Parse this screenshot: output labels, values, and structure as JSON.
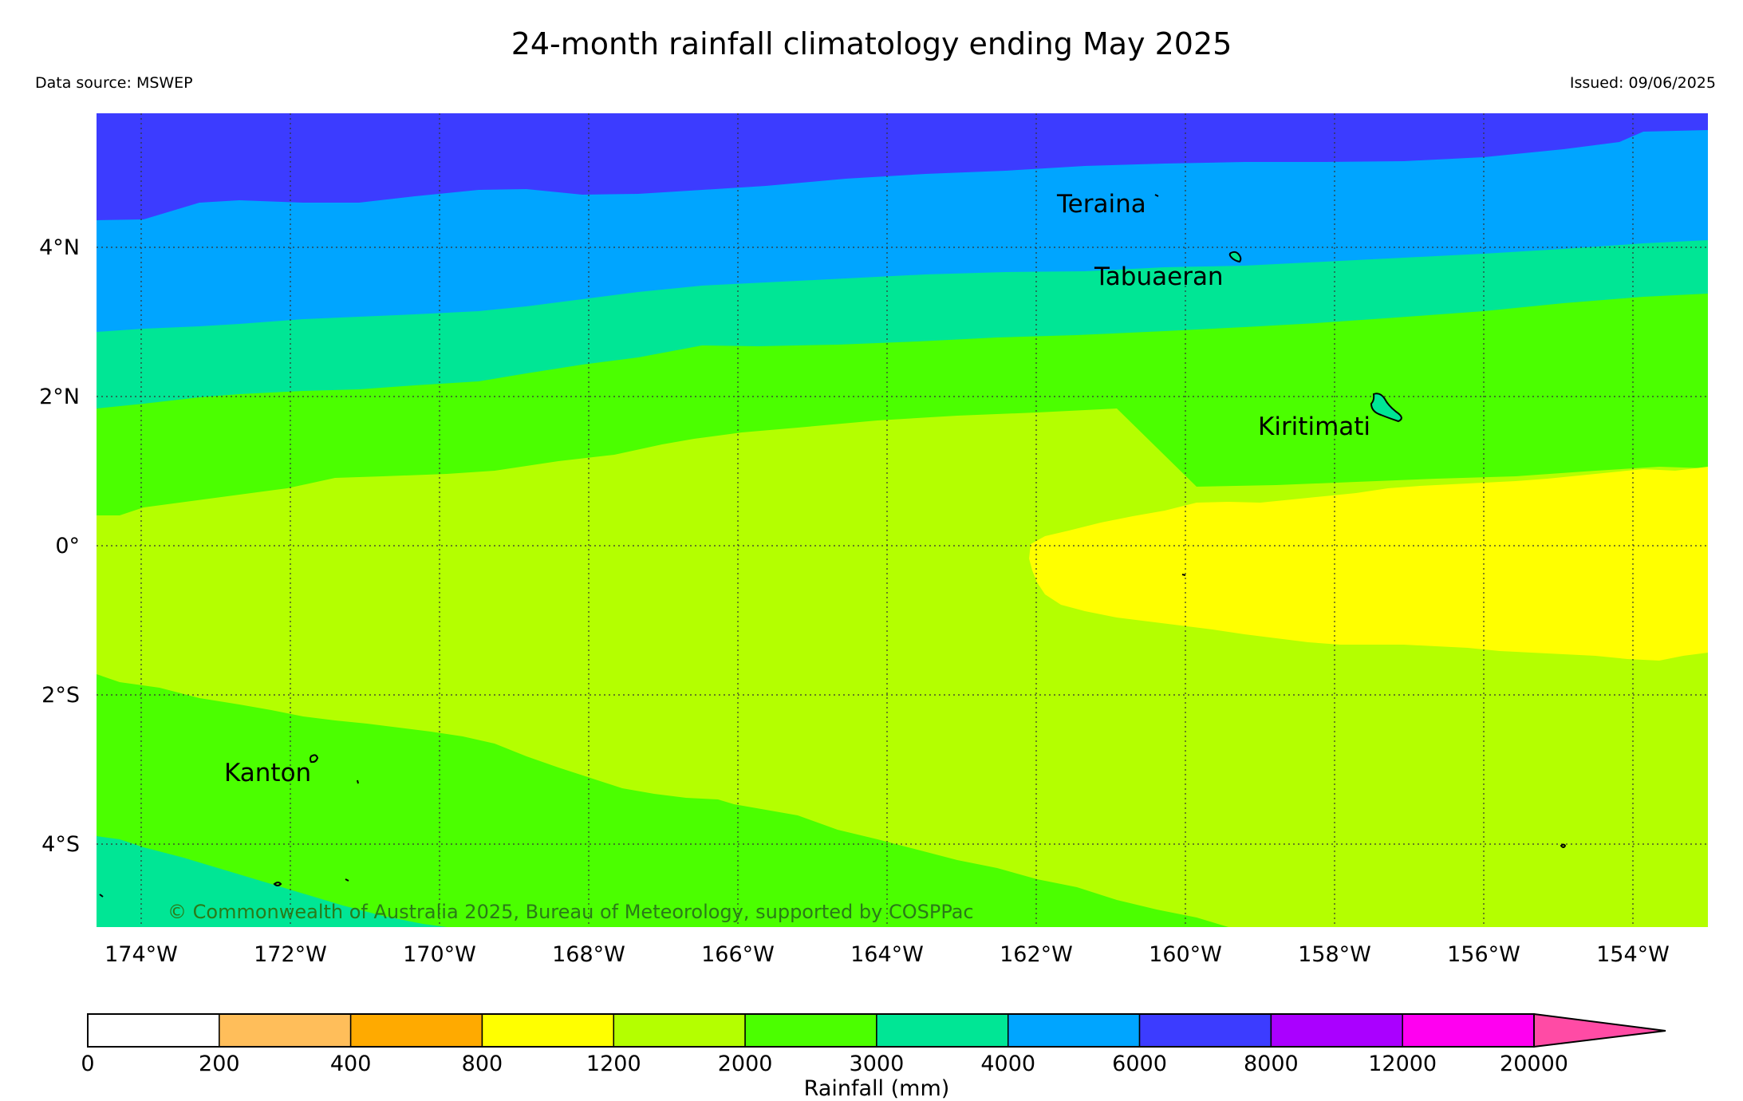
{
  "header": {
    "title": "24-month rainfall climatology ending May 2025",
    "source": "Data source: MSWEP",
    "issued": "Issued: 09/06/2025"
  },
  "map": {
    "lon_range": [
      -174.6,
      -152.9
    ],
    "lat_range": [
      -5.1,
      5.8
    ],
    "lon_ticks": [
      {
        "value": -174,
        "label": "174°W"
      },
      {
        "value": -172,
        "label": "172°W"
      },
      {
        "value": -170,
        "label": "170°W"
      },
      {
        "value": -168,
        "label": "168°W"
      },
      {
        "value": -166,
        "label": "166°W"
      },
      {
        "value": -164,
        "label": "164°W"
      },
      {
        "value": -162,
        "label": "162°W"
      },
      {
        "value": -160,
        "label": "160°W"
      },
      {
        "value": -158,
        "label": "158°W"
      },
      {
        "value": -156,
        "label": "156°W"
      },
      {
        "value": -154,
        "label": "154°W"
      }
    ],
    "lat_ticks": [
      {
        "value": 4,
        "label": "4°N"
      },
      {
        "value": 2,
        "label": "2°N"
      },
      {
        "value": 0,
        "label": "0°"
      },
      {
        "value": -2,
        "label": "2°S"
      },
      {
        "value": -4,
        "label": "4°S"
      }
    ],
    "gridlines": true,
    "places": [
      {
        "name": "Teraina",
        "lon": -161.7,
        "lat": 4.55
      },
      {
        "name": "Tabuaeran",
        "lon": -161.2,
        "lat": 3.6
      },
      {
        "name": "Kiritimati",
        "lon": -159.05,
        "lat": 1.6
      },
      {
        "name": "Kanton",
        "lon": -172.95,
        "lat": -3.15
      }
    ],
    "copyright": "© Commonwealth of Australia 2025, Bureau of Meteorology, supported by COSPPac",
    "rainfall_zones": [
      {
        "range": "6000-8000",
        "color": "#3c3cff",
        "description": "north of ~4.4°N west, ~5.5°N east"
      },
      {
        "range": "4000-6000",
        "color": "#00a5ff",
        "description": "~2.9°N–4.4°N west, ~4.1°N–5.5°N east"
      },
      {
        "range": "3000-4000",
        "color": "#00e695",
        "description": "~1.85°N–2.9°N west, ~3.4°N–4.1°N east; far SW corner"
      },
      {
        "range": "2000-3000",
        "color": "#4bff00",
        "description": "central latitudes band north; southwest region"
      },
      {
        "range": "1200-2000",
        "color": "#b4ff00",
        "description": "central and eastern equatorial region"
      },
      {
        "range": "800-1200",
        "color": "#ffff00",
        "description": "east of ~162°W near the equator"
      }
    ]
  },
  "colorbar": {
    "label": "Rainfall (mm)",
    "bins": [
      {
        "from": "0",
        "to": "200",
        "color": "#ffffff"
      },
      {
        "from": "200",
        "to": "400",
        "color": "#ffbe5a"
      },
      {
        "from": "400",
        "to": "800",
        "color": "#ffaa00"
      },
      {
        "from": "800",
        "to": "1200",
        "color": "#ffff00"
      },
      {
        "from": "1200",
        "to": "2000",
        "color": "#b4ff00"
      },
      {
        "from": "2000",
        "to": "3000",
        "color": "#4bff00"
      },
      {
        "from": "3000",
        "to": "4000",
        "color": "#00e695"
      },
      {
        "from": "4000",
        "to": "6000",
        "color": "#00a5ff"
      },
      {
        "from": "6000",
        "to": "8000",
        "color": "#3c3cff"
      },
      {
        "from": "8000",
        "to": "12000",
        "color": "#aa00ff"
      },
      {
        "from": "12000",
        "to": "20000",
        "color": "#ff00f0"
      }
    ],
    "extend_color": "#ff4ba5",
    "tick_labels": [
      "0",
      "200",
      "400",
      "800",
      "1200",
      "2000",
      "3000",
      "4000",
      "6000",
      "8000",
      "12000",
      "20000"
    ]
  }
}
